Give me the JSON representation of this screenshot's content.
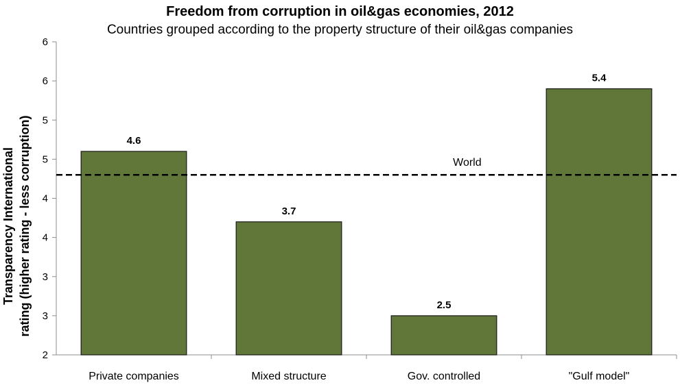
{
  "chart_data": {
    "type": "bar",
    "title": "Freedom from corruption in oil&gas economies, 2012",
    "subtitle": "Countries grouped according to the property structure of their oil&gas companies",
    "ylabel_lines": [
      "Transparency International",
      "rating (higher rating - less corruption)"
    ],
    "xlabel": "",
    "categories": [
      "Private companies",
      "Mixed structure",
      "Gov. controlled",
      "\"Gulf model\""
    ],
    "values": [
      4.6,
      3.7,
      2.5,
      5.4
    ],
    "data_labels": [
      "4.6",
      "3.7",
      "2.5",
      "5.4"
    ],
    "ylim": [
      2,
      6
    ],
    "y_tick_labels": [
      "2",
      "3",
      "3",
      "4",
      "4",
      "5",
      "5",
      "6",
      "6"
    ],
    "reference_line": {
      "label": "World",
      "value": 4.3,
      "style": "dashed"
    },
    "grid": false,
    "bar_color": "#61773a",
    "bar_edge_color": "#1a1a1a"
  }
}
